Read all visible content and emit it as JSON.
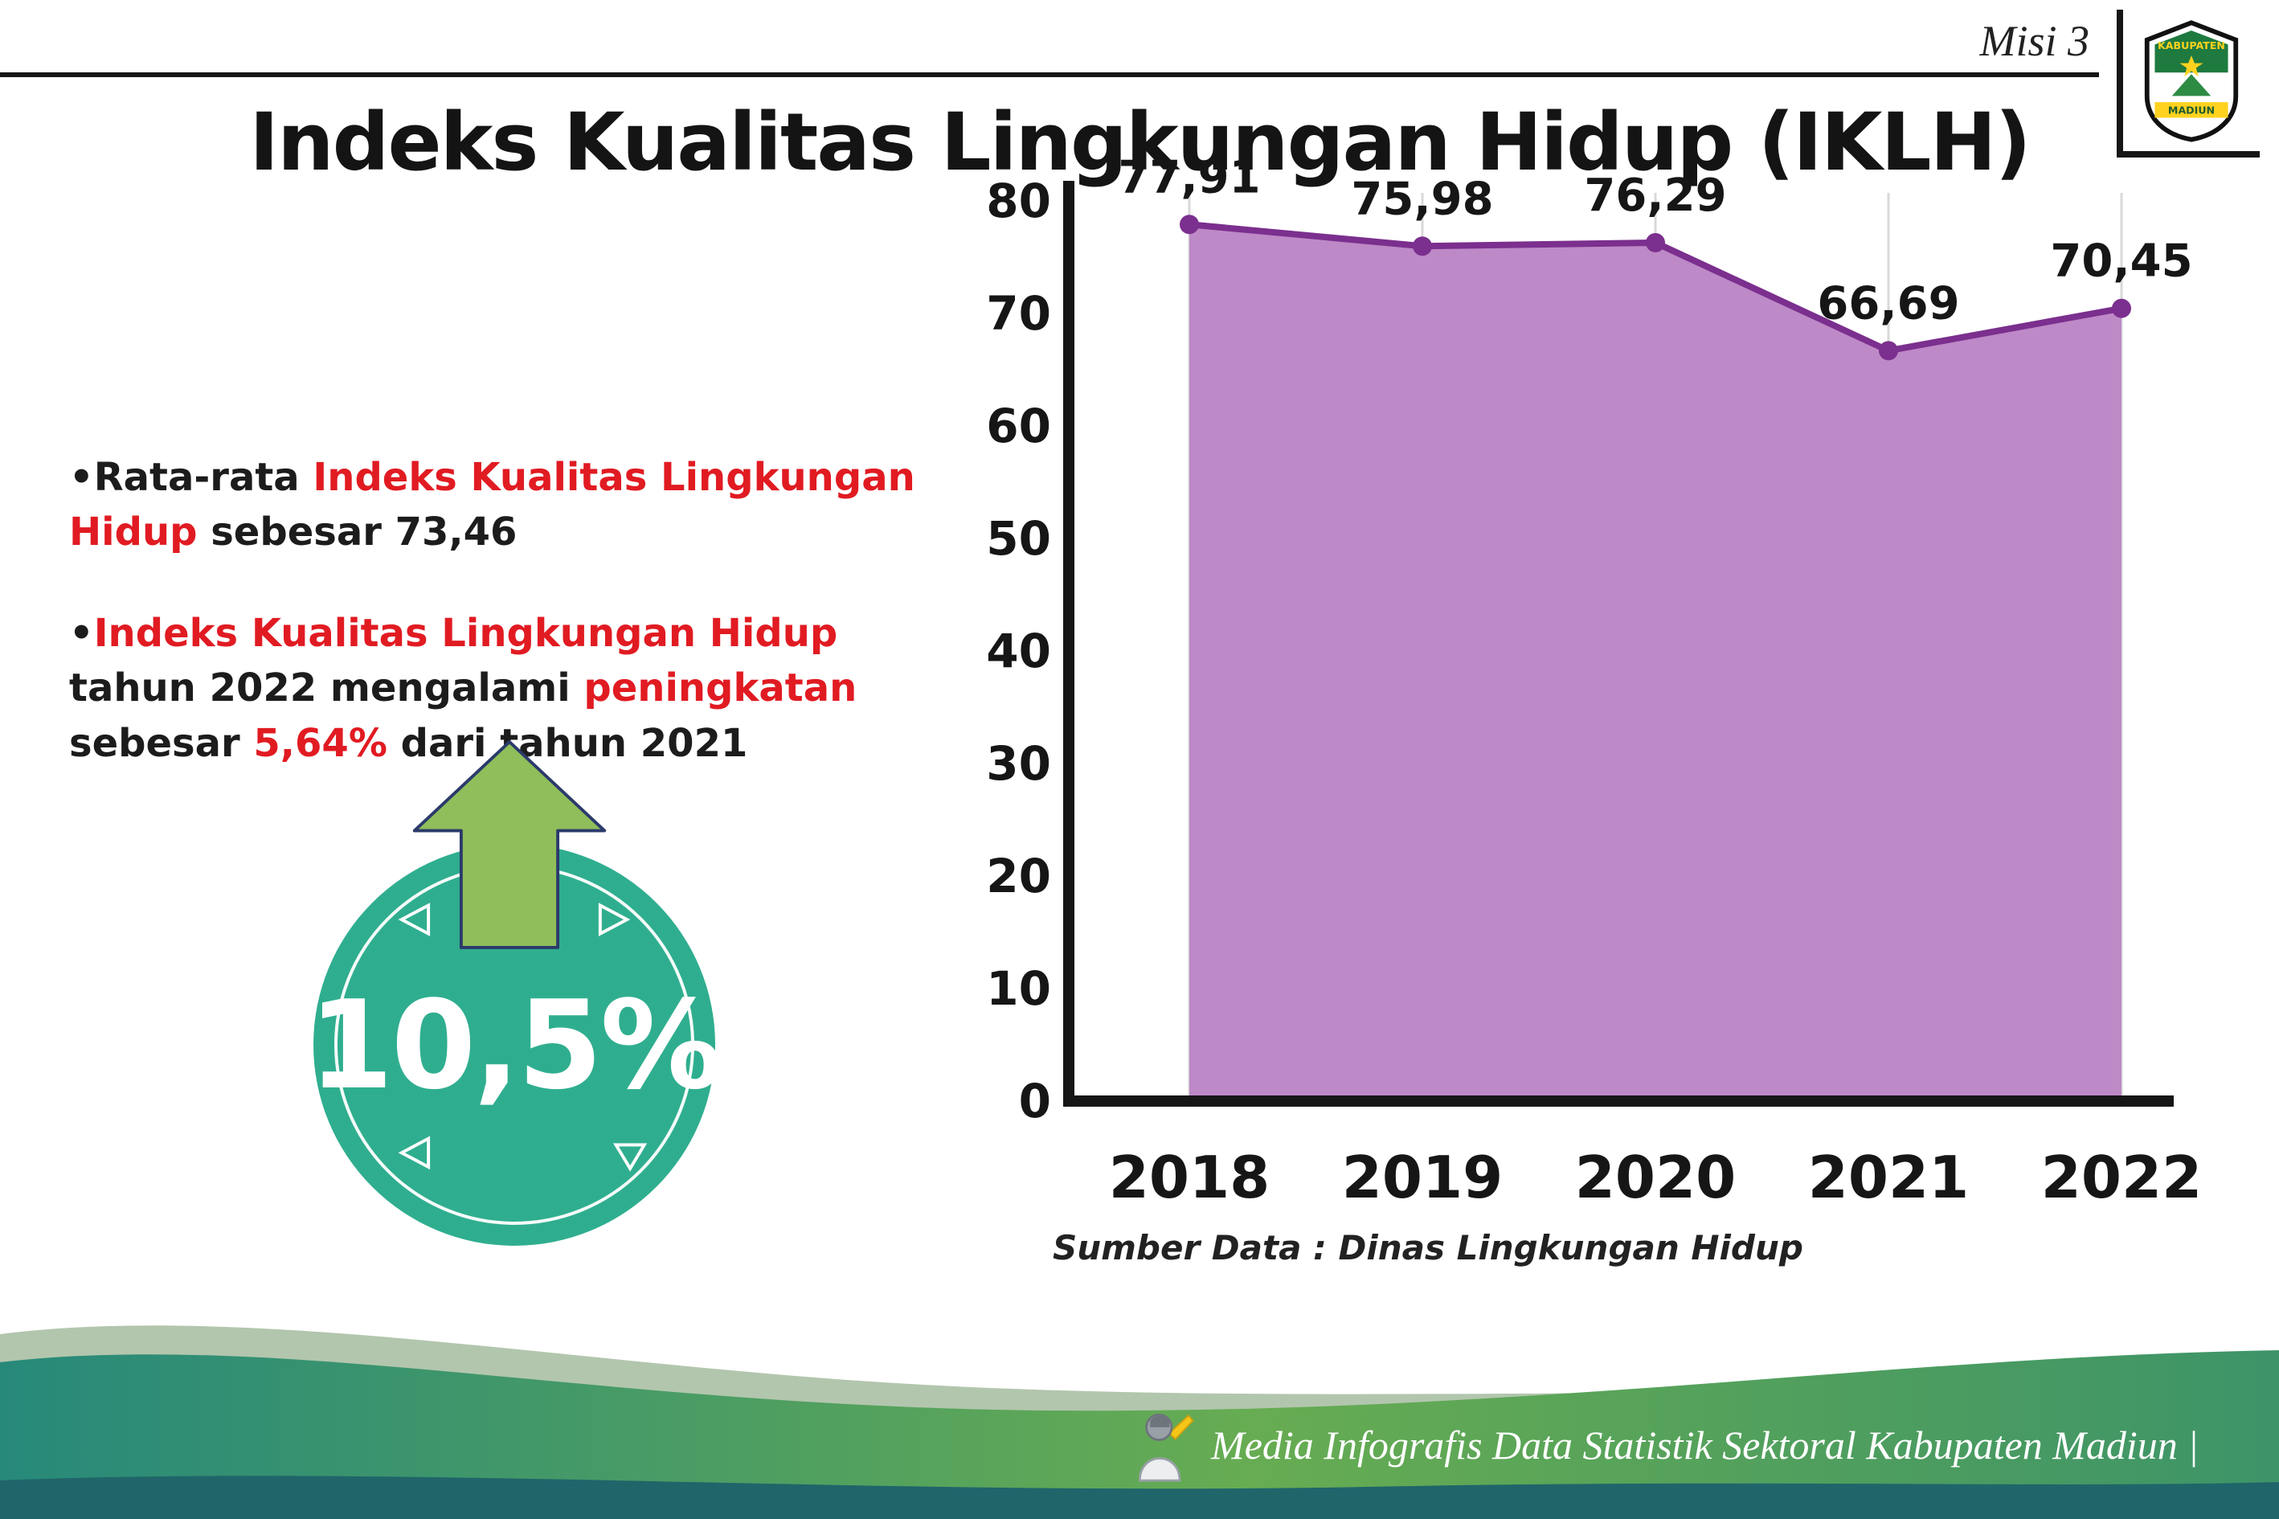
{
  "colors": {
    "red": "#e11b22",
    "teal_badge": "#2fae8f",
    "arrow_green": "#8fbe5a",
    "arrow_outline": "#2b3a6b",
    "chart_line": "#7b2f8e",
    "chart_fill": "#bd89c7",
    "axis_black": "#161616",
    "footer_sage": "#b2c6ad",
    "footer_main_left": "#27897a",
    "footer_main_mid": "#67ac52",
    "footer_main_right": "#3d9468",
    "footer_dark": "#20656a",
    "logo_green": "#1e7a3f",
    "logo_yellow": "#ffd21f"
  },
  "header": {
    "misi_label": "Misi 3",
    "title": "Indeks Kualitas Lingkungan Hidup (IKLH)"
  },
  "logo": {
    "top_text": "KABUPATEN",
    "bottom_text": "MADIUN"
  },
  "bullets": [
    {
      "segments": [
        {
          "text": "Rata-rata ",
          "color": "black"
        },
        {
          "text": "Indeks Kualitas Lingkungan Hidup",
          "color": "red"
        },
        {
          "text": " sebesar 73,46",
          "color": "black"
        }
      ]
    },
    {
      "segments": [
        {
          "text": "Indeks Kualitas Lingkungan Hidup",
          "color": "red"
        },
        {
          "text": " tahun 2022 mengalami ",
          "color": "black"
        },
        {
          "text": "peningkatan",
          "color": "red"
        },
        {
          "text": " sebesar ",
          "color": "black"
        },
        {
          "text": "5,64%",
          "color": "red"
        },
        {
          "text": " dari tahun 2021",
          "color": "black"
        }
      ]
    }
  ],
  "badge": {
    "value": "10,5%"
  },
  "chart_data": {
    "type": "area",
    "categories": [
      "2018",
      "2019",
      "2020",
      "2021",
      "2022"
    ],
    "values": [
      77.91,
      75.98,
      76.29,
      66.69,
      70.45
    ],
    "point_labels": [
      "77,91",
      "75,98",
      "76,29",
      "66,69",
      "70,45"
    ],
    "ylim": [
      0,
      80
    ],
    "yticks": [
      0,
      10,
      20,
      30,
      40,
      50,
      60,
      70,
      80
    ],
    "grid": "vertical-light",
    "legend": "none",
    "source": "Sumber Data : Dinas Lingkungan Hidup"
  },
  "footer": {
    "credit": "Media Infografis Data Statistik Sektoral Kabupaten Madiun |"
  }
}
